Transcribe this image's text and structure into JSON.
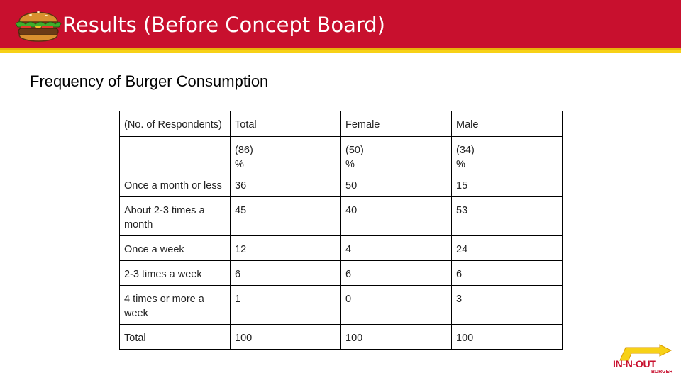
{
  "slide": {
    "title": "Results (Before Concept Board)",
    "subtitle": "Frequency of Burger Consumption"
  },
  "colors": {
    "header_red": "#c8102e",
    "stripe_yellow": "#f7d117"
  },
  "table": {
    "header": {
      "label": "(No. of Respondents)",
      "total": "Total",
      "female": "Female",
      "male": "Male"
    },
    "counts": {
      "total": "(86)",
      "female": "(50)",
      "male": "(34)",
      "unit": "%"
    },
    "rows": [
      {
        "label": "Once a month or less",
        "total": "36",
        "female": "50",
        "male": "15"
      },
      {
        "label": "About 2-3 times a month",
        "total": "45",
        "female": "40",
        "male": "53"
      },
      {
        "label": "Once a week",
        "total": "12",
        "female": "4",
        "male": "24"
      },
      {
        "label": "2-3 times a week",
        "total": "6",
        "female": "6",
        "male": "6"
      },
      {
        "label": "4 times or more a week",
        "total": "1",
        "female": "0",
        "male": "3"
      },
      {
        "label": "Total",
        "total": "100",
        "female": "100",
        "male": "100"
      }
    ]
  },
  "logo": {
    "icon": "burger-icon",
    "brand_text": "IN-N-OUT",
    "brand_sub": "BURGER"
  }
}
